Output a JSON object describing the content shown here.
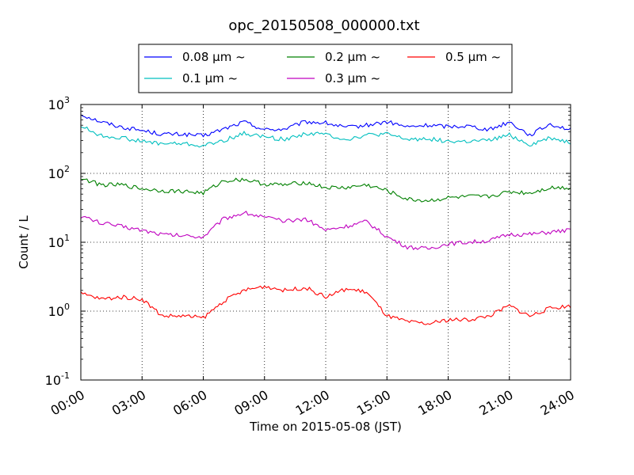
{
  "chart_data": {
    "type": "line",
    "title": "opc_20150508_000000.txt",
    "xlabel": "Time on 2015-05-08 (JST)",
    "ylabel": "Count / L",
    "yscale": "log",
    "ylim": [
      0.1,
      1000
    ],
    "xlim": [
      "00:00",
      "24:00"
    ],
    "grid": "dotted",
    "legend_position": "top-center",
    "x_ticks": [
      "00:00",
      "03:00",
      "06:00",
      "09:00",
      "12:00",
      "15:00",
      "18:00",
      "21:00",
      "24:00"
    ],
    "y_ticks": [
      {
        "base": "10",
        "exp": "-1"
      },
      {
        "base": "10",
        "exp": "0"
      },
      {
        "base": "10",
        "exp": "1"
      },
      {
        "base": "10",
        "exp": "2"
      },
      {
        "base": "10",
        "exp": "3"
      }
    ],
    "x_hours": [
      0,
      1,
      2,
      3,
      4,
      5,
      6,
      7,
      8,
      9,
      10,
      11,
      12,
      13,
      14,
      15,
      16,
      17,
      18,
      19,
      20,
      21,
      22,
      23,
      24
    ],
    "series": [
      {
        "name": "0.08 μm ~",
        "color": "#0000ff",
        "values": [
          720,
          560,
          470,
          420,
          370,
          370,
          350,
          440,
          560,
          430,
          440,
          560,
          540,
          460,
          500,
          560,
          470,
          500,
          480,
          490,
          430,
          560,
          360,
          520,
          430
        ]
      },
      {
        "name": "0.1 μm ~",
        "color": "#00bfbf",
        "values": [
          490,
          350,
          330,
          290,
          270,
          270,
          250,
          300,
          380,
          340,
          310,
          380,
          370,
          310,
          360,
          370,
          310,
          320,
          290,
          290,
          300,
          360,
          260,
          330,
          280
        ]
      },
      {
        "name": "0.2 μm ~",
        "color": "#008000",
        "values": [
          85,
          68,
          68,
          60,
          56,
          55,
          52,
          78,
          82,
          70,
          68,
          74,
          62,
          62,
          68,
          56,
          42,
          40,
          44,
          46,
          46,
          54,
          52,
          62,
          62
        ]
      },
      {
        "name": "0.3 μm ~",
        "color": "#bf00bf",
        "values": [
          24,
          19,
          17,
          15,
          13,
          12.5,
          12,
          22,
          27,
          23,
          20,
          22,
          15,
          17,
          20,
          12,
          8.5,
          8,
          9.5,
          10,
          10.5,
          13,
          13,
          14,
          15
        ]
      },
      {
        "name": "0.5 μm ~",
        "color": "#ff0000",
        "values": [
          1.8,
          1.5,
          1.6,
          1.5,
          0.85,
          0.85,
          0.8,
          1.4,
          2.0,
          2.3,
          2.0,
          2.2,
          1.6,
          2.1,
          1.9,
          0.85,
          0.7,
          0.65,
          0.75,
          0.75,
          0.85,
          1.2,
          0.85,
          1.1,
          1.2
        ]
      }
    ]
  }
}
